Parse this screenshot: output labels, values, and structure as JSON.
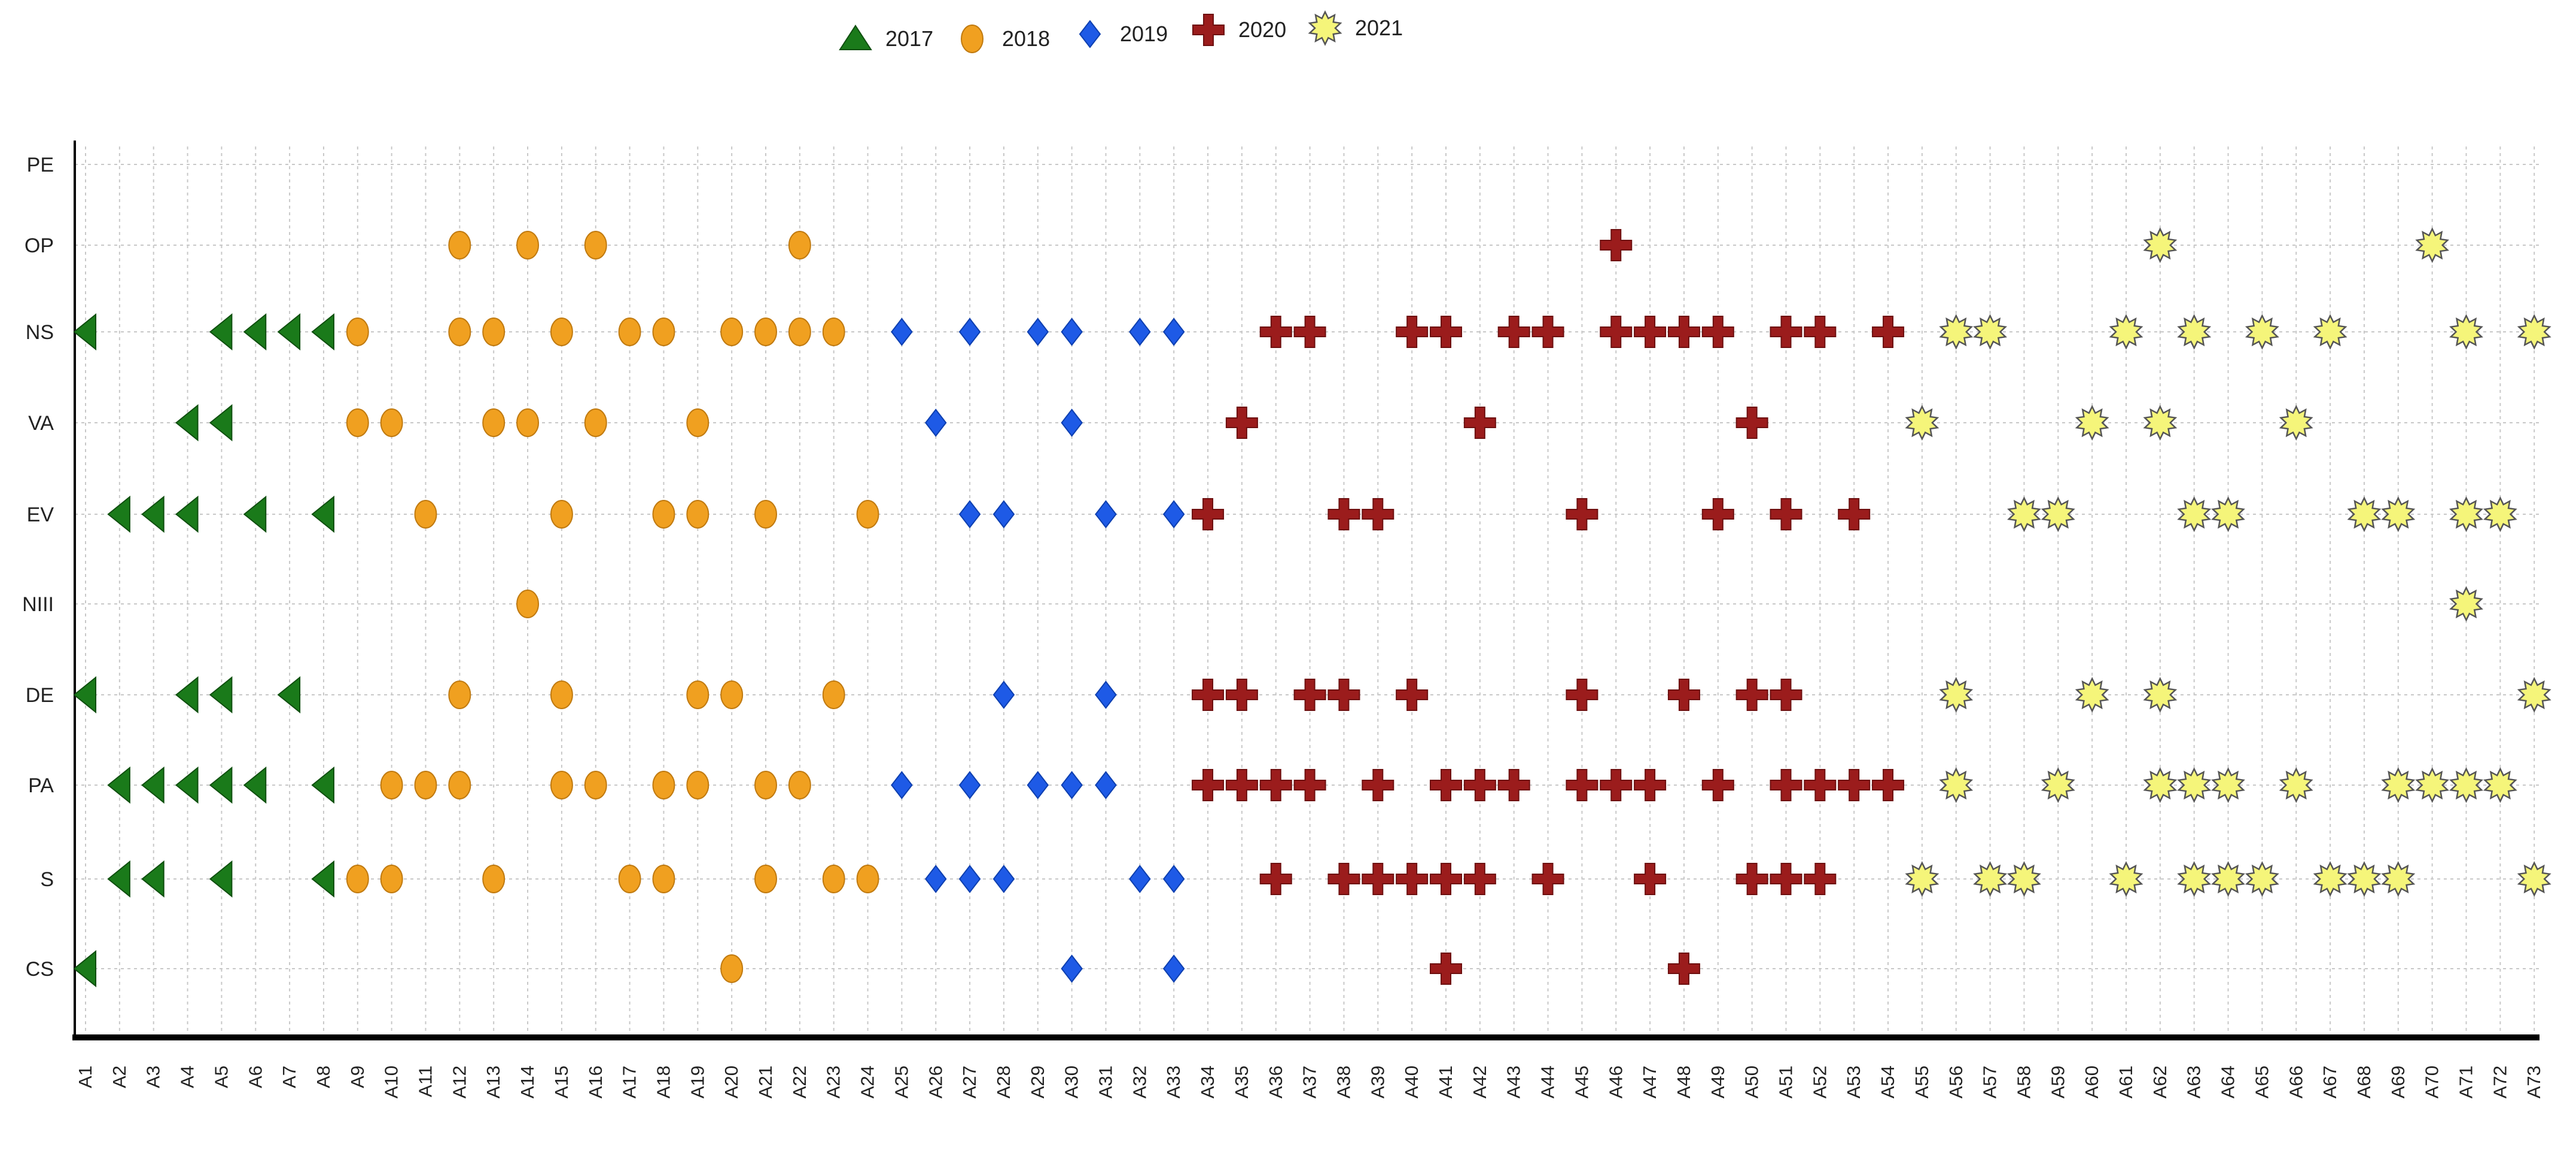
{
  "chart_data": {
    "type": "scatter",
    "title": "",
    "xlabel": "",
    "ylabel": "",
    "grid": true,
    "legend_position": "top-center",
    "x": [
      "A1",
      "A2",
      "A3",
      "A4",
      "A5",
      "A6",
      "A7",
      "A8",
      "A9",
      "A10",
      "A11",
      "A12",
      "A13",
      "A14",
      "A15",
      "A16",
      "A17",
      "A18",
      "A19",
      "A20",
      "A21",
      "A22",
      "A23",
      "A24",
      "A25",
      "A26",
      "A27",
      "A28",
      "A29",
      "A30",
      "A31",
      "A32",
      "A33",
      "A34",
      "A35",
      "A36",
      "A37",
      "A38",
      "A39",
      "A40",
      "A41",
      "A42",
      "A43",
      "A44",
      "A45",
      "A46",
      "A47",
      "A48",
      "A49",
      "A50",
      "A51",
      "A52",
      "A53",
      "A54",
      "A55",
      "A56",
      "A57",
      "A58",
      "A59",
      "A60",
      "A61",
      "A62",
      "A63",
      "A64",
      "A65",
      "A66",
      "A67",
      "A68",
      "A69",
      "A70",
      "A71",
      "A72",
      "A73"
    ],
    "categories": [
      "PE",
      "OP",
      "NS",
      "VA",
      "EV",
      "NIII",
      "DE",
      "PA",
      "S",
      "CS"
    ],
    "series": [
      {
        "name": "2017",
        "shape": "triangle",
        "color": "#1a7a1a",
        "points": {
          "NS": [
            "A1",
            "A5",
            "A6",
            "A7",
            "A8"
          ],
          "VA": [
            "A4",
            "A5"
          ],
          "EV": [
            "A2",
            "A3",
            "A4",
            "A6",
            "A8"
          ],
          "DE": [
            "A1",
            "A4",
            "A5",
            "A7"
          ],
          "PA": [
            "A2",
            "A3",
            "A4",
            "A5",
            "A6",
            "A8"
          ],
          "S": [
            "A2",
            "A3",
            "A5",
            "A8"
          ],
          "CS": [
            "A1"
          ]
        }
      },
      {
        "name": "2018",
        "shape": "circle",
        "color": "#f0a020",
        "points": {
          "OP": [
            "A12",
            "A14",
            "A16",
            "A22"
          ],
          "NS": [
            "A9",
            "A12",
            "A13",
            "A15",
            "A17",
            "A18",
            "A20",
            "A21",
            "A22",
            "A23"
          ],
          "VA": [
            "A9",
            "A10",
            "A13",
            "A14",
            "A16",
            "A19"
          ],
          "EV": [
            "A11",
            "A15",
            "A18",
            "A19",
            "A21",
            "A24"
          ],
          "NIII": [
            "A14"
          ],
          "DE": [
            "A12",
            "A15",
            "A19",
            "A20",
            "A23"
          ],
          "PA": [
            "A10",
            "A11",
            "A12",
            "A15",
            "A16",
            "A18",
            "A19",
            "A21",
            "A22"
          ],
          "S": [
            "A9",
            "A10",
            "A13",
            "A17",
            "A18",
            "A21",
            "A23",
            "A24"
          ],
          "CS": [
            "A20"
          ]
        }
      },
      {
        "name": "2019",
        "shape": "diamond",
        "color": "#1e5ae6",
        "points": {
          "NS": [
            "A25",
            "A27",
            "A29",
            "A30",
            "A32",
            "A33"
          ],
          "VA": [
            "A26",
            "A30"
          ],
          "EV": [
            "A27",
            "A28",
            "A31",
            "A33"
          ],
          "DE": [
            "A28",
            "A31"
          ],
          "PA": [
            "A25",
            "A27",
            "A29",
            "A30",
            "A31"
          ],
          "S": [
            "A26",
            "A27",
            "A28",
            "A32",
            "A33"
          ],
          "CS": [
            "A30",
            "A33"
          ]
        }
      },
      {
        "name": "2020",
        "shape": "cross",
        "color": "#9b1c1c",
        "points": {
          "OP": [
            "A46"
          ],
          "NS": [
            "A36",
            "A37",
            "A40",
            "A41",
            "A43",
            "A44",
            "A46",
            "A47",
            "A48",
            "A49",
            "A51",
            "A52",
            "A54"
          ],
          "VA": [
            "A35",
            "A42",
            "A50"
          ],
          "EV": [
            "A34",
            "A38",
            "A39",
            "A45",
            "A49",
            "A51",
            "A53"
          ],
          "DE": [
            "A34",
            "A35",
            "A37",
            "A38",
            "A40",
            "A45",
            "A48",
            "A50",
            "A51"
          ],
          "PA": [
            "A34",
            "A35",
            "A36",
            "A37",
            "A39",
            "A41",
            "A42",
            "A43",
            "A45",
            "A46",
            "A47",
            "A49",
            "A51",
            "A52",
            "A53",
            "A54"
          ],
          "S": [
            "A36",
            "A38",
            "A39",
            "A40",
            "A41",
            "A42",
            "A44",
            "A47",
            "A50",
            "A51",
            "A52"
          ],
          "CS": [
            "A41",
            "A48"
          ]
        }
      },
      {
        "name": "2021",
        "shape": "star",
        "color": "#f5f57a",
        "points": {
          "OP": [
            "A62",
            "A70"
          ],
          "NS": [
            "A56",
            "A57",
            "A61",
            "A63",
            "A65",
            "A67",
            "A71",
            "A73"
          ],
          "VA": [
            "A55",
            "A60",
            "A62",
            "A66"
          ],
          "EV": [
            "A58",
            "A59",
            "A63",
            "A64",
            "A68",
            "A69",
            "A71",
            "A72"
          ],
          "NIII": [
            "A71"
          ],
          "DE": [
            "A56",
            "A60",
            "A62",
            "A73"
          ],
          "PA": [
            "A56",
            "A59",
            "A62",
            "A63",
            "A64",
            "A66",
            "A69",
            "A70",
            "A71",
            "A72"
          ],
          "S": [
            "A55",
            "A57",
            "A58",
            "A61",
            "A63",
            "A64",
            "A65",
            "A67",
            "A68",
            "A69",
            "A73"
          ]
        }
      }
    ]
  }
}
